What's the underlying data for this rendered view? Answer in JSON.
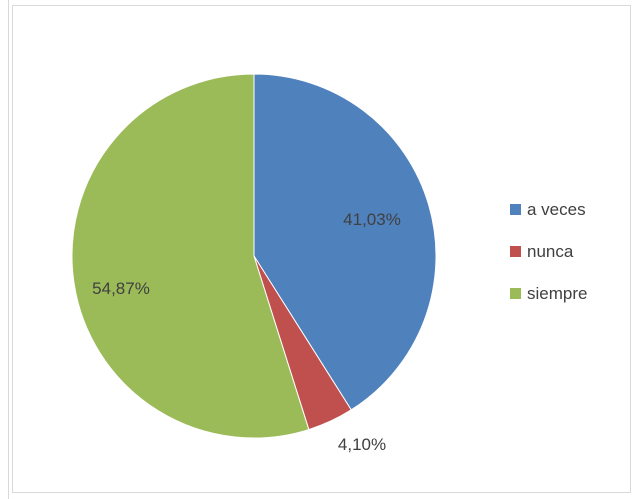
{
  "chart_data": {
    "type": "pie",
    "slices": [
      {
        "label": "a veces",
        "value": 41.03,
        "value_label": "41,03%",
        "color": "#4f81bd"
      },
      {
        "label": "nunca",
        "value": 4.1,
        "value_label": "4,10%",
        "color": "#c0504d"
      },
      {
        "label": "siempre",
        "value": 54.87,
        "value_label": "54,87%",
        "color": "#9bbb59"
      }
    ],
    "legend_position": "right",
    "start_angle": "top, clockwise"
  }
}
